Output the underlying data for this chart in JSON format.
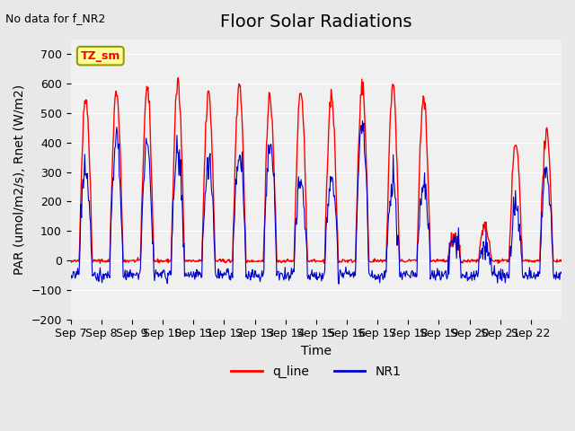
{
  "title": "Floor Solar Radiations",
  "xlabel": "Time",
  "ylabel": "PAR (umol/m2/s), Rnet (W/m2)",
  "annotation_text": "No data for f_NR2",
  "legend_box_text": "TZ_sm",
  "ylim": [
    -200,
    750
  ],
  "yticks": [
    -200,
    -100,
    0,
    100,
    200,
    300,
    400,
    500,
    600,
    700
  ],
  "xtick_labels": [
    "Sep 7",
    "Sep 8",
    "Sep 9",
    "Sep 10",
    "Sep 11",
    "Sep 12",
    "Sep 13",
    "Sep 14",
    "Sep 15",
    "Sep 16",
    "Sep 17",
    "Sep 18",
    "Sep 19",
    "Sep 20",
    "Sep 21",
    "Sep 22"
  ],
  "q_line_color": "#FF0000",
  "NR1_color": "#0000CC",
  "background_color": "#E8E8E8",
  "plot_bg_color": "#F0F0F0",
  "title_fontsize": 14,
  "axis_label_fontsize": 10,
  "tick_fontsize": 9
}
